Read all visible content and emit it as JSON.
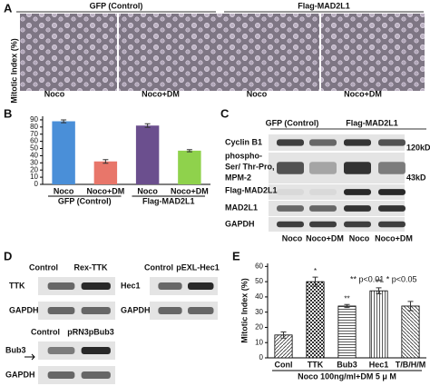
{
  "panel_a": {
    "label": "A",
    "groups": [
      "GFP (Control)",
      "Flag-MAD2L1"
    ],
    "images": [
      "Noco",
      "Noco+DM",
      "Noco",
      "Noco+DM"
    ]
  },
  "chart_data": [
    {
      "type": "bar",
      "panel_label": "B",
      "y_label": "Mitotic Index (%)",
      "categories": [
        "Noco",
        "Noco+DM",
        "Noco",
        "Noco+DM"
      ],
      "groups": [
        "GFP (Control)",
        "Flag-MAD2L1"
      ],
      "values": [
        88,
        32,
        82,
        47
      ],
      "errors": [
        2,
        2.5,
        2.5,
        1.5
      ],
      "colors": [
        "#4a8fd8",
        "#e8766a",
        "#6b4f8e",
        "#8fd24c"
      ],
      "ylim": [
        0,
        95
      ],
      "yticks": [
        0,
        10,
        20,
        30,
        40,
        50,
        60,
        70,
        80,
        90
      ]
    },
    {
      "type": "bar",
      "panel_label": "E",
      "y_label": "Mitotic Index (%)",
      "categories": [
        "Conl",
        "TTK",
        "Bub3",
        "Hec1",
        "T/B/H/M"
      ],
      "values": [
        15,
        50,
        34,
        44,
        34
      ],
      "errors": [
        2,
        3,
        1,
        2,
        3
      ],
      "significance": [
        null,
        "*",
        "**",
        "**",
        null
      ],
      "legend_text": "** p<0.01  * p<0.05",
      "x_label": "Noco 100ng/ml+DM 5 μ M",
      "ylim": [
        0,
        62
      ],
      "yticks": [
        0,
        10,
        20,
        30,
        40,
        50,
        60
      ]
    }
  ],
  "panel_c": {
    "label": "C",
    "groups": [
      "GFP (Control)",
      "Flag-MAD2L1"
    ],
    "rows": [
      "Cyclin B1",
      "Flag-MAD2L1",
      "MAD2L1",
      "GAPDH"
    ],
    "phospho_label": [
      "phospho-",
      "Ser/ Thr-Pro,",
      "MPM-2"
    ],
    "markers": [
      "120kD",
      "43kD"
    ],
    "lanes": [
      "Noco",
      "Noco+DM",
      "Noco",
      "Noco+DM"
    ]
  },
  "panel_d": {
    "label": "D",
    "ttk": {
      "lanes": [
        "Control",
        "Rex-TTK"
      ],
      "rows": [
        "TTK",
        "GAPDH"
      ]
    },
    "hec1": {
      "lanes": [
        "Control",
        "pEXL-Hec1"
      ],
      "rows": [
        "Hec1",
        "GAPDH"
      ]
    },
    "bub3": {
      "lanes": [
        "Control",
        "pRN3pBub3"
      ],
      "rows": [
        "Bub3",
        "GAPDH"
      ]
    }
  }
}
